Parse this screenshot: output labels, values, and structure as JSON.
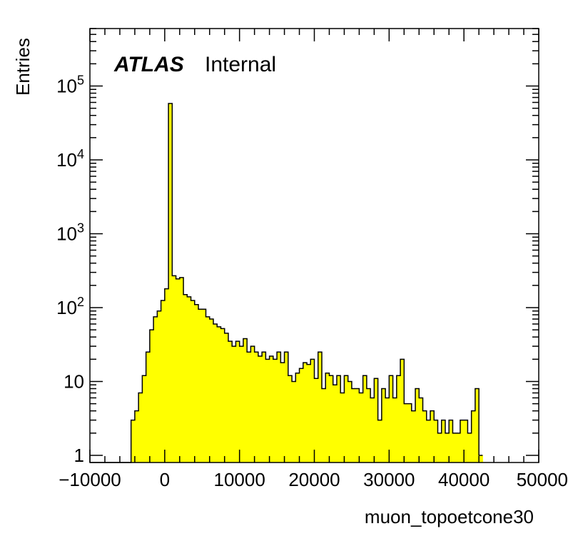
{
  "chart_data": {
    "type": "histogram",
    "xlabel": "muon_topoetcone30",
    "ylabel": "Entries",
    "xlim": [
      -10000,
      50000
    ],
    "ylim": [
      0.8,
      600000
    ],
    "yscale": "log",
    "fill_color": "#ffff00",
    "line_color": "#000000",
    "grid": false,
    "legend": "none",
    "xtick_labels": [
      "−10000",
      "0",
      "10000",
      "20000",
      "30000",
      "40000",
      "50000"
    ],
    "ytick_labels": [
      {
        "value": 1,
        "base": "1",
        "exp": ""
      },
      {
        "value": 10,
        "base": "10",
        "exp": ""
      },
      {
        "value": 100,
        "base": "10",
        "exp": "2"
      },
      {
        "value": 1000,
        "base": "10",
        "exp": "3"
      },
      {
        "value": 10000,
        "base": "10",
        "exp": "4"
      },
      {
        "value": 100000,
        "base": "10",
        "exp": "5"
      }
    ],
    "annotation": {
      "atlas": "ATLAS",
      "status": "Internal"
    },
    "bin_start": -10000,
    "bin_width": 500,
    "values": [
      0,
      0,
      0,
      0,
      0,
      0,
      0,
      0,
      0,
      0,
      0,
      3,
      4,
      7,
      12,
      25,
      50,
      75,
      90,
      125,
      180,
      58000,
      270,
      245,
      255,
      150,
      140,
      125,
      110,
      95,
      95,
      75,
      70,
      60,
      55,
      52,
      45,
      35,
      30,
      35,
      30,
      38,
      25,
      30,
      25,
      22,
      25,
      20,
      22,
      20,
      25,
      18,
      25,
      12,
      10,
      13,
      15,
      18,
      17,
      20,
      11,
      25,
      8,
      13,
      12,
      9,
      12,
      7,
      12,
      10,
      8,
      8,
      7,
      12,
      8,
      6,
      11,
      3,
      8,
      6,
      12,
      6,
      12,
      20,
      5,
      5,
      4,
      8,
      6,
      4,
      3,
      4,
      3,
      2,
      3,
      2,
      3,
      2,
      2,
      3,
      3,
      2,
      4,
      8,
      1
    ]
  }
}
